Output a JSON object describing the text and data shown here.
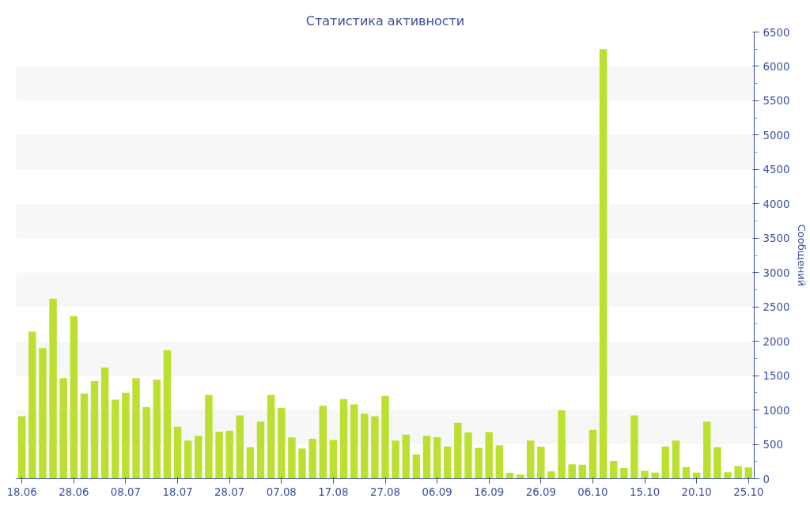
{
  "chart_data": {
    "type": "bar",
    "title": "Статистика активности",
    "ylabel": "Сообщений",
    "categories": [
      "18.06",
      null,
      null,
      null,
      null,
      "28.06",
      null,
      null,
      null,
      null,
      "08.07",
      null,
      null,
      null,
      null,
      "18.07",
      null,
      null,
      null,
      null,
      "28.07",
      null,
      null,
      null,
      null,
      "07.08",
      null,
      null,
      null,
      null,
      "17.08",
      null,
      null,
      null,
      null,
      "27.08",
      null,
      null,
      null,
      null,
      "06.09",
      null,
      null,
      null,
      null,
      "16.09",
      null,
      null,
      null,
      null,
      "26.09",
      null,
      null,
      null,
      null,
      "06.10",
      null,
      null,
      null,
      null,
      "15.10",
      null,
      null,
      null,
      null,
      "20.10",
      null,
      null,
      null,
      null,
      "25.10"
    ],
    "values": [
      910,
      2140,
      1900,
      2620,
      1465,
      2365,
      1240,
      1420,
      1620,
      1150,
      1250,
      1465,
      1040,
      1440,
      1870,
      755,
      555,
      625,
      1220,
      685,
      700,
      920,
      460,
      830,
      1220,
      1030,
      600,
      440,
      580,
      1060,
      565,
      1160,
      1080,
      945,
      910,
      1205,
      555,
      640,
      355,
      625,
      605,
      470,
      815,
      675,
      450,
      680,
      485,
      85,
      60,
      555,
      465,
      105,
      995,
      210,
      205,
      710,
      6250,
      260,
      155,
      920,
      115,
      90,
      470,
      555,
      170,
      90,
      830,
      460,
      95,
      185,
      165
    ],
    "color": "#bbe030",
    "ylim": [
      0,
      6500
    ],
    "yticks": [
      0,
      500,
      1000,
      1500,
      2000,
      2500,
      3000,
      3500,
      4000,
      4500,
      5000,
      5500,
      6000,
      6500
    ],
    "bands": [
      {
        "axis": "y",
        "from": 500,
        "to": 1000,
        "color": "#f7f7f7"
      },
      {
        "axis": "y",
        "from": 1500,
        "to": 2000,
        "color": "#f7f7f7"
      },
      {
        "axis": "y",
        "from": 2500,
        "to": 3000,
        "color": "#f7f7f7"
      },
      {
        "axis": "y",
        "from": 3500,
        "to": 4000,
        "color": "#f7f7f7"
      },
      {
        "axis": "y",
        "from": 4500,
        "to": 5000,
        "color": "#f7f7f7"
      },
      {
        "axis": "y",
        "from": 5500,
        "to": 6000,
        "color": "#f7f7f7"
      }
    ]
  }
}
